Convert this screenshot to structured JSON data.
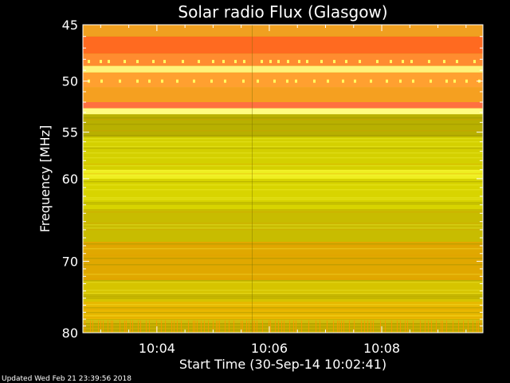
{
  "chart_data": {
    "type": "heatmap",
    "title": "Solar radio Flux (Glasgow)",
    "xlabel": "Start Time (30-Sep-14 10:02:41)",
    "ylabel": "Frequency [MHz]",
    "ylim": [
      80,
      45
    ],
    "y_scale": "log",
    "x_ticks": [
      "10:04",
      "10:06",
      "10:08"
    ],
    "y_ticks": [
      45,
      50,
      55,
      60,
      70,
      80
    ],
    "color_bands": [
      {
        "from_mhz": 45,
        "to_mhz": 46,
        "color": "#f0a020"
      },
      {
        "from_mhz": 46,
        "to_mhz": 47.5,
        "color": "#ff6a20"
      },
      {
        "from_mhz": 47.5,
        "to_mhz": 48.6,
        "color": "#ff8c30"
      },
      {
        "from_mhz": 48.6,
        "to_mhz": 49.2,
        "color": "#fff27a"
      },
      {
        "from_mhz": 49.2,
        "to_mhz": 50.6,
        "color": "#ffa030"
      },
      {
        "from_mhz": 50.6,
        "to_mhz": 52.0,
        "color": "#f5a020"
      },
      {
        "from_mhz": 52.0,
        "to_mhz": 52.6,
        "color": "#ff7040"
      },
      {
        "from_mhz": 52.6,
        "to_mhz": 53.2,
        "color": "#fffb80"
      },
      {
        "from_mhz": 53.2,
        "to_mhz": 55.5,
        "color": "#b8b000"
      },
      {
        "from_mhz": 55.5,
        "to_mhz": 59.0,
        "color": "#d4d000"
      },
      {
        "from_mhz": 59.0,
        "to_mhz": 60.0,
        "color": "#eeee20"
      },
      {
        "from_mhz": 60.0,
        "to_mhz": 63.5,
        "color": "#d8d400"
      },
      {
        "from_mhz": 63.5,
        "to_mhz": 67.5,
        "color": "#c8bc00"
      },
      {
        "from_mhz": 67.5,
        "to_mhz": 72.5,
        "color": "#e0a800"
      },
      {
        "from_mhz": 72.5,
        "to_mhz": 75.5,
        "color": "#d6c400"
      },
      {
        "from_mhz": 75.5,
        "to_mhz": 78.0,
        "color": "#e8b800"
      },
      {
        "from_mhz": 78.0,
        "to_mhz": 80.0,
        "color": "#c8b000"
      }
    ],
    "footer": "Updated Wed Feb 21 23:39:56 2018"
  }
}
